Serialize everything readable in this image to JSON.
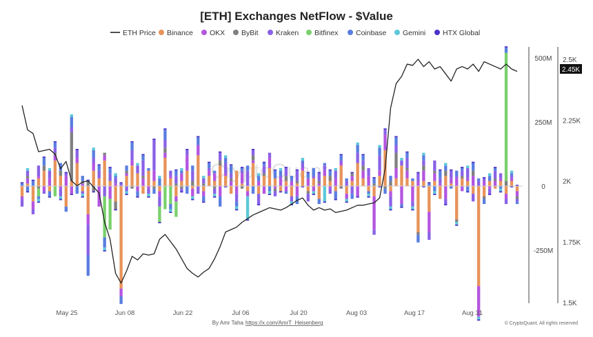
{
  "chart_data": {
    "type": "bar+line",
    "title": "[ETH] Exchanges NetFlow - $Value",
    "legend_position": "top",
    "legend": [
      {
        "name": "ETH Price",
        "kind": "line",
        "color": "#222222"
      },
      {
        "name": "Binance",
        "kind": "dot",
        "color": "#e8935a"
      },
      {
        "name": "OKX",
        "kind": "dot",
        "color": "#b455e0"
      },
      {
        "name": "ByBit",
        "kind": "dot",
        "color": "#808080"
      },
      {
        "name": "Kraken",
        "kind": "dot",
        "color": "#8a62e6"
      },
      {
        "name": "Bitfinex",
        "kind": "dot",
        "color": "#7ad06c"
      },
      {
        "name": "Coinbase",
        "kind": "dot",
        "color": "#5a7ee0"
      },
      {
        "name": "Gemini",
        "kind": "dot",
        "color": "#5cc8d8"
      },
      {
        "name": "HTX Global",
        "kind": "dot",
        "color": "#4b34c8"
      }
    ],
    "x_ticks": [
      "May 25",
      "Jun 08",
      "Jun 22",
      "Jul 06",
      "Jul 20",
      "Aug 03",
      "Aug 17",
      "Aug 31"
    ],
    "y_left": {
      "ticks": [
        "500M",
        "250M",
        "0",
        "-250M"
      ],
      "range": [
        -450000000,
        550000000
      ]
    },
    "y_right": {
      "ticks": [
        "2.5K",
        "2.25K",
        "2K",
        "1.75K",
        "1.5K"
      ],
      "range": [
        1500,
        2550
      ],
      "current_label": "2.45K",
      "current_value": 2450
    },
    "watermark": "CryptoQuant",
    "grid": false,
    "eth_price": [
      2310,
      2210,
      2195,
      2120,
      2125,
      2130,
      2110,
      2050,
      2080,
      2000,
      1980,
      1995,
      2000,
      1975,
      1950,
      1830,
      1760,
      1620,
      1580,
      1630,
      1690,
      1675,
      1700,
      1695,
      1700,
      1760,
      1780,
      1750,
      1720,
      1680,
      1640,
      1620,
      1605,
      1625,
      1640,
      1680,
      1730,
      1790,
      1800,
      1810,
      1830,
      1845,
      1860,
      1870,
      1880,
      1890,
      1885,
      1880,
      1890,
      1905,
      1920,
      1930,
      1900,
      1880,
      1890,
      1880,
      1885,
      1870,
      1875,
      1880,
      1890,
      1900,
      1900,
      1905,
      1910,
      1930,
      2050,
      2300,
      2400,
      2430,
      2480,
      2475,
      2500,
      2470,
      2490,
      2460,
      2470,
      2440,
      2410,
      2460,
      2470,
      2460,
      2480,
      2450,
      2490,
      2480,
      2470,
      2460,
      2480,
      2460,
      2450
    ],
    "netflow_binance": [
      -40,
      10,
      -60,
      30,
      60,
      -20,
      100,
      40,
      -80,
      20,
      90,
      -20,
      -110,
      60,
      30,
      100,
      20,
      -60,
      -400,
      40,
      80,
      50,
      -30,
      60,
      20,
      -20,
      110,
      30,
      -40,
      20,
      60,
      -10,
      120,
      -20,
      40,
      20,
      80,
      40,
      -30,
      60,
      10,
      -20,
      90,
      -30,
      40,
      70,
      30,
      -20,
      20,
      -40,
      10,
      60,
      -20,
      30,
      -50,
      40,
      20,
      -20,
      80,
      -30,
      20,
      90,
      30,
      -20,
      -40,
      40,
      140,
      -20,
      30,
      80,
      30,
      20,
      -180,
      20,
      -100,
      20,
      -50,
      40,
      10,
      -130,
      30,
      20,
      -30,
      -390,
      -40,
      20,
      -10,
      20,
      -30,
      20,
      -20
    ],
    "netflow_okx": [
      -10,
      20,
      -30,
      10,
      -20,
      30,
      20,
      -10,
      40,
      -30,
      20,
      10,
      -40,
      30,
      -80,
      20,
      -50,
      10,
      -30,
      10,
      20,
      -20,
      30,
      -10,
      40,
      -20,
      20,
      10,
      -20,
      30,
      60,
      -30,
      40,
      -20,
      20,
      30,
      -40,
      10,
      20,
      -30,
      40,
      -20,
      10,
      20,
      -30,
      40,
      -10,
      30,
      -20,
      20,
      -40,
      10,
      30,
      -20,
      10,
      20,
      -10,
      30,
      10,
      -20,
      20,
      -40,
      30,
      40,
      -130,
      20,
      60,
      -20,
      40,
      -70,
      30,
      -60,
      20,
      40,
      -80,
      30,
      10,
      -50,
      20,
      30,
      -20,
      10,
      40,
      -120,
      20,
      -10,
      20,
      10,
      -20,
      10,
      -20
    ],
    "netflow_bybit": [
      0,
      10,
      0,
      -10,
      20,
      0,
      10,
      20,
      0,
      190,
      0,
      10,
      20,
      -20,
      0,
      10,
      0,
      -30,
      0,
      10,
      -10,
      0,
      10,
      0,
      -10,
      0,
      20,
      0,
      10,
      -10,
      0,
      20,
      0,
      10,
      0,
      -10,
      20,
      0,
      10,
      0,
      -10,
      0,
      20,
      0,
      10,
      0,
      -10,
      0,
      20,
      0,
      10,
      0,
      -10,
      0,
      10,
      0,
      20,
      0,
      -10,
      0,
      10,
      0,
      20,
      0,
      10,
      0,
      -10,
      20,
      60,
      0,
      10,
      0,
      -10,
      20,
      0,
      10,
      0,
      20,
      0,
      -10,
      10,
      0,
      20,
      0,
      -10,
      0,
      10,
      0,
      20,
      0,
      -10
    ],
    "netflow_kraken": [
      -30,
      20,
      -20,
      40,
      -10,
      30,
      20,
      -30,
      10,
      20,
      30,
      -10,
      -120,
      20,
      30,
      -40,
      30,
      20,
      10,
      -20,
      40,
      30,
      60,
      -20,
      120,
      -40,
      30,
      20,
      30,
      -10,
      20,
      40,
      -30,
      20,
      10,
      -20,
      30,
      40,
      20,
      -30,
      10,
      60,
      20,
      -40,
      30,
      20,
      -20,
      10,
      30,
      -20,
      40,
      20,
      -30,
      10,
      30,
      20,
      -20,
      30,
      10,
      20,
      -30,
      40,
      20,
      30,
      -20,
      60,
      20,
      -40,
      30,
      20,
      40,
      -20,
      30,
      20,
      -30,
      40,
      20,
      -20,
      30,
      10,
      20,
      40,
      -30,
      20,
      10,
      -20,
      30,
      20,
      -20,
      10,
      -10
    ],
    "netflow_bitfinex": [
      0,
      0,
      0,
      -30,
      0,
      0,
      -40,
      0,
      0,
      0,
      0,
      0,
      0,
      0,
      0,
      -160,
      -120,
      0,
      0,
      0,
      0,
      0,
      0,
      0,
      0,
      -60,
      -90,
      -70,
      -60,
      0,
      0,
      0,
      0,
      0,
      0,
      0,
      0,
      0,
      0,
      0,
      0,
      0,
      0,
      0,
      0,
      0,
      0,
      0,
      0,
      0,
      0,
      0,
      0,
      0,
      0,
      0,
      0,
      0,
      0,
      0,
      0,
      0,
      0,
      0,
      0,
      0,
      0,
      0,
      0,
      0,
      0,
      0,
      0,
      0,
      0,
      0,
      0,
      0,
      0,
      0,
      0,
      0,
      0,
      0,
      0,
      0,
      0,
      0,
      500,
      0,
      0
    ],
    "netflow_coinbase": [
      10,
      -20,
      20,
      -10,
      30,
      -20,
      20,
      30,
      -20,
      40,
      -30,
      20,
      -80,
      30,
      20,
      -40,
      20,
      10,
      -30,
      20,
      30,
      -20,
      20,
      10,
      -20,
      30,
      40,
      -20,
      20,
      10,
      -30,
      20,
      30,
      -20,
      20,
      10,
      -40,
      20,
      30,
      -20,
      10,
      20,
      -30,
      20,
      10,
      -20,
      30,
      20,
      -10,
      20,
      -30,
      10,
      20,
      30,
      -20,
      10,
      20,
      -30,
      20,
      10,
      -20,
      30,
      20,
      -10,
      20,
      30,
      -20,
      20,
      30,
      -10,
      20,
      10,
      -30,
      20,
      10,
      -20,
      30,
      20,
      -10,
      20,
      10,
      -20,
      30,
      10,
      -20,
      20,
      10,
      -10,
      20,
      10,
      -10
    ],
    "netflow_gemini": [
      0,
      10,
      0,
      -10,
      0,
      10,
      0,
      -10,
      0,
      10,
      0,
      -10,
      0,
      10,
      0,
      -10,
      0,
      10,
      0,
      -10,
      0,
      10,
      0,
      -10,
      0,
      10,
      0,
      -10,
      0,
      10,
      0,
      -10,
      0,
      10,
      0,
      -10,
      0,
      10,
      0,
      -10,
      0,
      -90,
      0,
      10,
      0,
      -10,
      0,
      10,
      0,
      -10,
      0,
      10,
      0,
      -10,
      0,
      -60,
      0,
      10,
      0,
      -10,
      0,
      10,
      0,
      -10,
      0,
      10,
      0,
      -10,
      0,
      10,
      0,
      -10,
      0,
      10,
      0,
      -10,
      0,
      10,
      0,
      -10,
      0,
      10,
      0,
      -10,
      0,
      10,
      0,
      -10,
      0,
      10,
      0
    ],
    "netflow_htx": [
      5,
      -5,
      5,
      -5,
      5,
      -5,
      5,
      -5,
      5,
      -5,
      5,
      -5,
      5,
      -5,
      5,
      -5,
      5,
      -5,
      5,
      -5,
      5,
      -5,
      5,
      -5,
      5,
      -5,
      5,
      -5,
      5,
      -5,
      5,
      -5,
      5,
      -5,
      5,
      -5,
      5,
      -5,
      5,
      -5,
      5,
      -5,
      5,
      -5,
      5,
      -5,
      5,
      -5,
      5,
      -5,
      5,
      -5,
      5,
      -5,
      5,
      -5,
      5,
      -5,
      5,
      -5,
      5,
      -5,
      5,
      -5,
      5,
      -5,
      5,
      -5,
      5,
      -5,
      5,
      -5,
      5,
      -5,
      5,
      -5,
      5,
      -5,
      5,
      -5,
      5,
      -5,
      5,
      -5,
      5,
      -5,
      5,
      -5,
      5,
      -5,
      5
    ],
    "netflow_unit": "M"
  },
  "footer": {
    "author": "By Amr Taha",
    "link": "https://x.com/AmrT_Heisenberg",
    "copyright": "© CryptoQuant. All rights reserved"
  }
}
